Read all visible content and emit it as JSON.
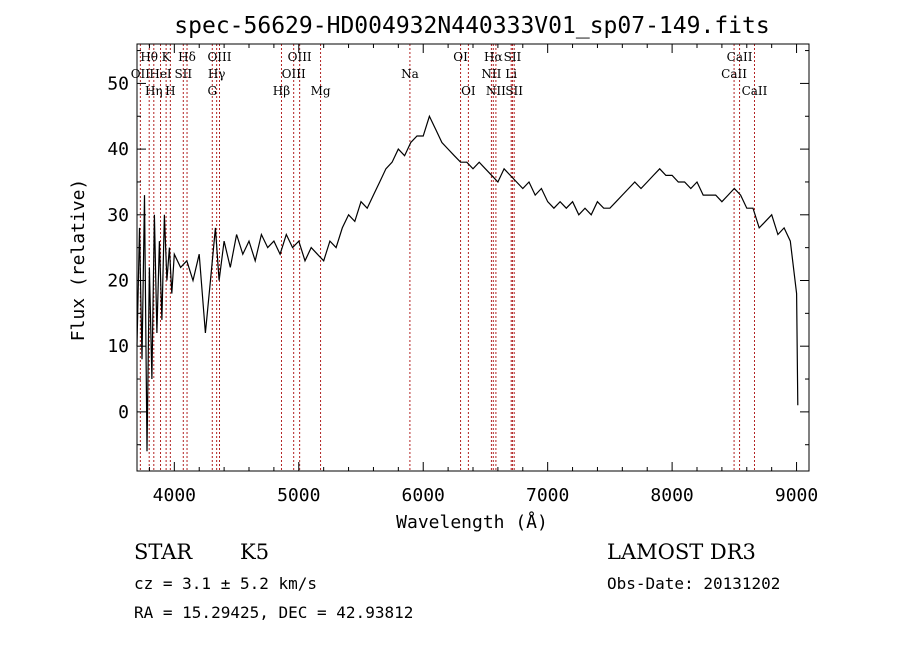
{
  "chart_data": {
    "type": "line",
    "title": "spec-56629-HD004932N440333V01_sp07-149.fits",
    "xlabel": "Wavelength (Å)",
    "ylabel": "Flux (relative)",
    "xlim": [
      3700,
      9100
    ],
    "ylim": [
      -9,
      56
    ],
    "xticks": [
      4000,
      5000,
      6000,
      7000,
      8000,
      9000
    ],
    "yticks": [
      0,
      10,
      20,
      30,
      40,
      50
    ],
    "series": [
      {
        "name": "flux",
        "x": [
          3700,
          3720,
          3740,
          3760,
          3780,
          3800,
          3820,
          3840,
          3860,
          3880,
          3900,
          3920,
          3940,
          3960,
          3980,
          4000,
          4050,
          4100,
          4150,
          4200,
          4250,
          4300,
          4330,
          4360,
          4400,
          4450,
          4500,
          4550,
          4600,
          4650,
          4700,
          4750,
          4800,
          4850,
          4900,
          4950,
          5000,
          5050,
          5100,
          5150,
          5200,
          5250,
          5300,
          5350,
          5400,
          5450,
          5500,
          5550,
          5600,
          5650,
          5700,
          5750,
          5800,
          5850,
          5900,
          5950,
          6000,
          6050,
          6100,
          6150,
          6200,
          6250,
          6300,
          6350,
          6400,
          6450,
          6500,
          6550,
          6600,
          6650,
          6700,
          6750,
          6800,
          6850,
          6900,
          6950,
          7000,
          7050,
          7100,
          7150,
          7200,
          7250,
          7300,
          7350,
          7400,
          7450,
          7500,
          7550,
          7600,
          7650,
          7700,
          7750,
          7800,
          7850,
          7900,
          7950,
          8000,
          8050,
          8100,
          8150,
          8200,
          8250,
          8300,
          8350,
          8400,
          8450,
          8500,
          8550,
          8600,
          8650,
          8700,
          8750,
          8800,
          8850,
          8900,
          8950,
          9000,
          9010
        ],
        "y": [
          10,
          28,
          8,
          33,
          -6,
          22,
          5,
          30,
          12,
          26,
          14,
          30,
          20,
          25,
          18,
          24,
          22,
          23,
          20,
          24,
          12,
          22,
          28,
          20,
          26,
          22,
          27,
          24,
          26,
          23,
          27,
          25,
          26,
          24,
          27,
          25,
          26,
          23,
          25,
          24,
          23,
          26,
          25,
          28,
          30,
          29,
          32,
          31,
          33,
          35,
          37,
          38,
          40,
          39,
          41,
          42,
          42,
          45,
          43,
          41,
          40,
          39,
          38,
          38,
          37,
          38,
          37,
          36,
          35,
          37,
          36,
          35,
          34,
          35,
          33,
          34,
          32,
          31,
          32,
          31,
          32,
          30,
          31,
          30,
          32,
          31,
          31,
          32,
          33,
          34,
          35,
          34,
          35,
          36,
          37,
          36,
          36,
          35,
          35,
          34,
          35,
          33,
          33,
          33,
          32,
          33,
          34,
          33,
          31,
          31,
          28,
          29,
          30,
          27,
          28,
          26,
          18,
          1
        ]
      }
    ],
    "lines": [
      {
        "name": "Hθ",
        "wl": 3798,
        "tier": 1
      },
      {
        "name": "OII",
        "wl": 3727,
        "tier": 2
      },
      {
        "name": "Hη",
        "wl": 3835,
        "tier": 3
      },
      {
        "name": "K",
        "wl": 3934,
        "tier": 1
      },
      {
        "name": "HeI",
        "wl": 3889,
        "tier": 2
      },
      {
        "name": "H",
        "wl": 3968,
        "tier": 3
      },
      {
        "name": "SII",
        "wl": 4072,
        "tier": 2
      },
      {
        "name": "Hδ",
        "wl": 4102,
        "tier": 1
      },
      {
        "name": "OIII",
        "wl": 4363,
        "tier": 1
      },
      {
        "name": "Hγ",
        "wl": 4340,
        "tier": 2
      },
      {
        "name": "G",
        "wl": 4305,
        "tier": 3
      },
      {
        "name": "Hβ",
        "wl": 4861,
        "tier": 3
      },
      {
        "name": "OIII",
        "wl": 5007,
        "tier": 1
      },
      {
        "name": "OIII",
        "wl": 4959,
        "tier": 2
      },
      {
        "name": "Mg",
        "wl": 5175,
        "tier": 3
      },
      {
        "name": "Na",
        "wl": 5893,
        "tier": 2
      },
      {
        "name": "OI",
        "wl": 6300,
        "tier": 1
      },
      {
        "name": "OI",
        "wl": 6363,
        "tier": 3
      },
      {
        "name": "Hα",
        "wl": 6563,
        "tier": 1
      },
      {
        "name": "NII",
        "wl": 6548,
        "tier": 2
      },
      {
        "name": "NII",
        "wl": 6584,
        "tier": 3
      },
      {
        "name": "SII",
        "wl": 6717,
        "tier": 1
      },
      {
        "name": "Li",
        "wl": 6707,
        "tier": 2
      },
      {
        "name": "SII",
        "wl": 6731,
        "tier": 3
      },
      {
        "name": "CaII",
        "wl": 8542,
        "tier": 1
      },
      {
        "name": "CaII",
        "wl": 8498,
        "tier": 2
      },
      {
        "name": "CaII",
        "wl": 8662,
        "tier": 3
      }
    ]
  },
  "info": {
    "object_type": "STAR",
    "subclass": "K5",
    "cz": "cz = 3.1 ± 5.2 km/s",
    "coords": "RA =  15.29425, DEC =  42.93812",
    "survey": "LAMOST DR3",
    "obs_date": "Obs-Date: 20131202"
  },
  "colors": {
    "line_marker": "#b22222",
    "spectrum": "#000000"
  }
}
